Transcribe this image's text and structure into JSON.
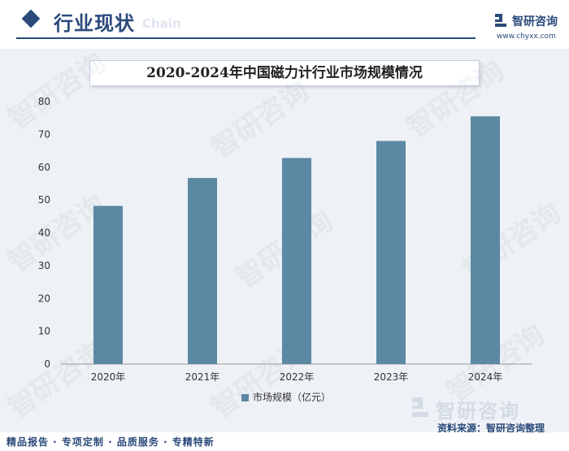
{
  "header": {
    "section_title": "行业现状",
    "section_subtitle": "Chain"
  },
  "brand": {
    "name": "智研咨询",
    "url": "www.chyxx.com"
  },
  "watermark_text": "智研咨询",
  "chart_data": {
    "type": "bar",
    "title": "2020-2024年中国磁力计行业市场规模情况",
    "categories": [
      "2020年",
      "2021年",
      "2022年",
      "2023年",
      "2024年"
    ],
    "series": [
      {
        "name": "市场规模（亿元）",
        "values": [
          48.2,
          56.7,
          62.8,
          68.0,
          75.5
        ],
        "color": "#5b88a2"
      }
    ],
    "ylim": [
      0,
      80
    ],
    "yticks": [
      0,
      10,
      20,
      30,
      40,
      50,
      60,
      70,
      80
    ],
    "xlabel": "",
    "ylabel": "",
    "grid": false,
    "legend_position": "bottom"
  },
  "footer": {
    "services": "精品报告 · 专项定制 · 品质服务 · 专精特新",
    "source_brand": "智研咨询",
    "source": "资料来源：智研咨询整理"
  },
  "colors": {
    "accent": "#2a4a7a",
    "bar": "#5b88a2",
    "panel_bg": "#eef1f5"
  }
}
